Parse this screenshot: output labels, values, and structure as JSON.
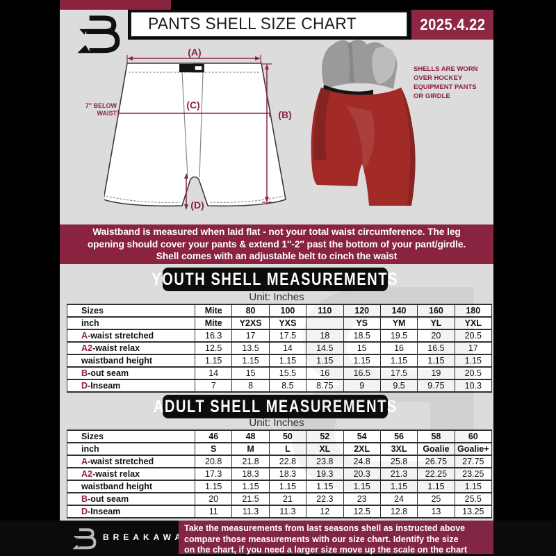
{
  "colors": {
    "maroon": "#8a2340",
    "date_box_maroon": "#8d2744",
    "footer_maroon": "#822643",
    "content_background": "#dcdcdd",
    "heading_box_black": "#0c0c0c",
    "accent_label": "#8b2340",
    "shell_red": "#a22b28"
  },
  "header": {
    "title": "PANTS SHELL SIZE CHART",
    "date": "2025.4.22"
  },
  "diagram": {
    "label_a": "(A)",
    "label_b": "(B)",
    "label_c": "(C)",
    "label_d": "(D)",
    "note_lines": [
      "7'' BELOW",
      "WAIST"
    ],
    "photo_caption_lines": [
      "SHELLS ARE WORN",
      "OVER HOCKEY",
      "EQUIPMENT PANTS",
      "OR GIRDLE"
    ]
  },
  "notice_lines": [
    "Waistband is measured when laid flat - not your total waist circumference. The leg",
    "opening should cover your pants & extend 1''-2'' past the bottom of your pant/girdle.",
    "Shell comes with an adjustable belt to cinch the waist"
  ],
  "youth": {
    "heading": "YOUTH SHELL MEASUREMENTS",
    "unit": "Unit: Inches",
    "rows": [
      {
        "header": true,
        "prefix": "",
        "label": "Sizes",
        "values": [
          "Mite",
          "80",
          "100",
          "110",
          "120",
          "140",
          "160",
          "180"
        ]
      },
      {
        "header": true,
        "prefix": "",
        "label": "inch",
        "values": [
          "Mite",
          "Y2XS",
          "YXS",
          "",
          "YS",
          "YM",
          "YL",
          "YXL"
        ]
      },
      {
        "header": false,
        "prefix": "A",
        "label": "-waist stretched",
        "values": [
          "16.3",
          "17",
          "17.5",
          "18",
          "18.5",
          "19.5",
          "20",
          "20.5"
        ]
      },
      {
        "header": false,
        "prefix": "A2",
        "label": "-waist relax",
        "values": [
          "12.5",
          "13.5",
          "14",
          "14.5",
          "15",
          "16",
          "16.5",
          "17"
        ]
      },
      {
        "header": false,
        "prefix": "",
        "label": "waistband height",
        "values": [
          "1.15",
          "1.15",
          "1.15",
          "1.15",
          "1.15",
          "1.15",
          "1.15",
          "1.15"
        ]
      },
      {
        "header": false,
        "prefix": "B",
        "label": "-out seam",
        "values": [
          "14",
          "15",
          "15.5",
          "16",
          "16.5",
          "17.5",
          "19",
          "20.5"
        ]
      },
      {
        "header": false,
        "prefix": "D",
        "label": "-Inseam",
        "values": [
          "7",
          "8",
          "8.5",
          "8.75",
          "9",
          "9.5",
          "9.75",
          "10.3"
        ]
      }
    ]
  },
  "adult": {
    "heading": "ADULT SHELL MEASUREMENTS",
    "unit": "Unit: Inches",
    "rows": [
      {
        "header": true,
        "prefix": "",
        "label": "Sizes",
        "values": [
          "46",
          "48",
          "50",
          "52",
          "54",
          "56",
          "58",
          "60"
        ]
      },
      {
        "header": true,
        "prefix": "",
        "label": "inch",
        "values": [
          "S",
          "M",
          "L",
          "XL",
          "2XL",
          "3XL",
          "Goalie",
          "Goalie+"
        ]
      },
      {
        "header": false,
        "prefix": "A",
        "label": "-waist stretched",
        "values": [
          "20.8",
          "21.8",
          "22.8",
          "23.8",
          "24.8",
          "25.8",
          "26.75",
          "27.75"
        ]
      },
      {
        "header": false,
        "prefix": "A2",
        "label": "-waist relax",
        "values": [
          "17.3",
          "18.3",
          "18.3",
          "19.3",
          "20.3",
          "21.3",
          "22.25",
          "23.25"
        ]
      },
      {
        "header": false,
        "prefix": "",
        "label": "waistband height",
        "values": [
          "1.15",
          "1.15",
          "1.15",
          "1.15",
          "1.15",
          "1.15",
          "1.15",
          "1.15"
        ]
      },
      {
        "header": false,
        "prefix": "B",
        "label": "-out seam",
        "values": [
          "20",
          "21.5",
          "21",
          "22.3",
          "23",
          "24",
          "25",
          "25.5"
        ]
      },
      {
        "header": false,
        "prefix": "D",
        "label": "-Inseam",
        "values": [
          "11",
          "11.3",
          "11.3",
          "12",
          "12.5",
          "12.8",
          "13",
          "13.25"
        ]
      }
    ]
  },
  "footer": {
    "brand": "BREAKAWAY",
    "lines": [
      "Take the measurements from last seasons shell as instructed above",
      "compare those measurements  with our size chart. Identify the size",
      "on the chart, if you need a larger size move up the scale on the chart"
    ]
  },
  "watermark_letter": "B"
}
